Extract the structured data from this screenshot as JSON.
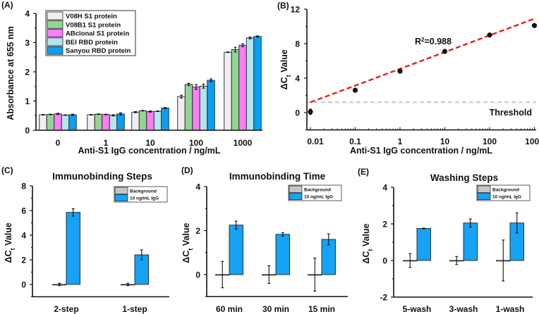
{
  "chart_data": [
    {
      "panel": "A",
      "type": "bar",
      "title": "",
      "xlabel": "Anti-S1 IgG concentration / ng/mL",
      "ylabel": "Absorbance at 655 nm",
      "ylim": [
        0,
        4
      ],
      "yticks": [
        0,
        1,
        2,
        3,
        4
      ],
      "categories": [
        "0",
        "1",
        "10",
        "100",
        "1000"
      ],
      "series": [
        {
          "name": "V08H S1 protein",
          "color": "#efefef",
          "values": [
            0.53,
            0.53,
            0.62,
            1.15,
            2.67
          ],
          "errors": [
            0.01,
            0.01,
            0.02,
            0.05,
            0.01
          ]
        },
        {
          "name": "V08B1 S1 protein",
          "color": "#92d592",
          "values": [
            0.54,
            0.55,
            0.67,
            1.57,
            2.76
          ],
          "errors": [
            0.01,
            0.01,
            0.01,
            0.04,
            0.08
          ]
        },
        {
          "name": "ABclonal S1 protein",
          "color": "#ff7df7",
          "values": [
            0.56,
            0.54,
            0.64,
            1.48,
            2.91
          ],
          "errors": [
            0.02,
            0.01,
            0.02,
            0.08,
            0.05
          ]
        },
        {
          "name": "BEI RBD protein",
          "color": "#b3e5ec",
          "values": [
            0.52,
            0.51,
            0.65,
            1.51,
            3.16
          ],
          "errors": [
            0.01,
            0.02,
            0.01,
            0.07,
            0.03
          ]
        },
        {
          "name": "Sanyou RBD protein",
          "color": "#0a9ff5",
          "values": [
            0.53,
            0.56,
            0.76,
            1.71,
            3.21
          ],
          "errors": [
            0.02,
            0.04,
            0.02,
            0.05,
            0.02
          ]
        }
      ]
    },
    {
      "panel": "B",
      "type": "scatter",
      "title": "",
      "xlabel": "Anti-S1 IgG concentration / ng/mL",
      "ylabel": [
        "ΔC",
        "t",
        " Value"
      ],
      "xscale": "log",
      "xlim": [
        0.01,
        1000
      ],
      "xticks": [
        "0.01",
        "0.1",
        "1",
        "10",
        "100",
        "1000"
      ],
      "ylim": [
        -2,
        12
      ],
      "yticks": [
        0,
        4,
        8,
        12
      ],
      "points": [
        {
          "x": 0.01,
          "y": 0.1,
          "err": 0.3
        },
        {
          "x": 0.1,
          "y": 2.6,
          "err": 0.1
        },
        {
          "x": 1,
          "y": 4.8,
          "err": 0.1
        },
        {
          "x": 10,
          "y": 7.1,
          "err": 0.1
        },
        {
          "x": 100,
          "y": 9.0,
          "err": 0.1
        },
        {
          "x": 1000,
          "y": 10.1,
          "err": 0.1
        }
      ],
      "fit": {
        "x": [
          0.01,
          1000
        ],
        "y": [
          1.2,
          10.9
        ],
        "color": "#ee1c1c",
        "label": "R",
        "label_sup": "2",
        "label_rest": "=0.988"
      },
      "threshold": {
        "y": 1.2,
        "label": "Threshold",
        "color": "#c8c8c8"
      }
    },
    {
      "panel": "C",
      "type": "bar",
      "title": "Immunobinding Steps",
      "ylabel": [
        "ΔC",
        "t",
        " Value"
      ],
      "ylim": [
        -1,
        8
      ],
      "yticks": [
        0,
        2,
        4,
        6,
        8
      ],
      "categories": [
        "2-step",
        "1-step"
      ],
      "series": [
        {
          "name": "Background",
          "color": "#c6c6c6",
          "values": [
            0,
            0
          ],
          "errors": [
            0.1,
            0.1
          ]
        },
        {
          "name": "10 ng/mL IgG",
          "color": "#16a2f5",
          "values": [
            5.85,
            2.4
          ],
          "errors": [
            0.3,
            0.4
          ]
        }
      ]
    },
    {
      "panel": "D",
      "type": "bar",
      "title": "Immunobinding Time",
      "ylabel": [
        "ΔC",
        "t",
        " Value"
      ],
      "ylim": [
        -1,
        4
      ],
      "yticks": [
        0,
        2,
        4
      ],
      "categories": [
        "60 min",
        "30 min",
        "15 min"
      ],
      "series": [
        {
          "name": "Background",
          "color": "#c6c6c6",
          "values": [
            0,
            0,
            0
          ],
          "errors": [
            0.6,
            0.4,
            0.75
          ]
        },
        {
          "name": "10 ng/mL IgG",
          "color": "#16a2f5",
          "values": [
            2.25,
            1.83,
            1.6
          ],
          "errors": [
            0.18,
            0.08,
            0.25
          ]
        }
      ]
    },
    {
      "panel": "E",
      "type": "bar",
      "title": "Washing Steps",
      "ylabel": [
        "ΔC",
        "t",
        " Value"
      ],
      "ylim": [
        -2,
        4
      ],
      "yticks": [
        -2,
        0,
        2,
        4
      ],
      "categories": [
        "5-wash",
        "3-wash",
        "1-wash"
      ],
      "series": [
        {
          "name": "Background",
          "color": "#c6c6c6",
          "values": [
            0,
            0,
            0
          ],
          "errors": [
            0.38,
            0.22,
            1.12
          ]
        },
        {
          "name": "10 ng/mL IgG",
          "color": "#16a2f5",
          "values": [
            1.75,
            2.05,
            2.05
          ],
          "errors": [
            0.02,
            0.22,
            0.55
          ]
        }
      ]
    }
  ],
  "panel_labels": [
    "(A)",
    "(B)",
    "(C)",
    "(D)",
    "(E)"
  ]
}
